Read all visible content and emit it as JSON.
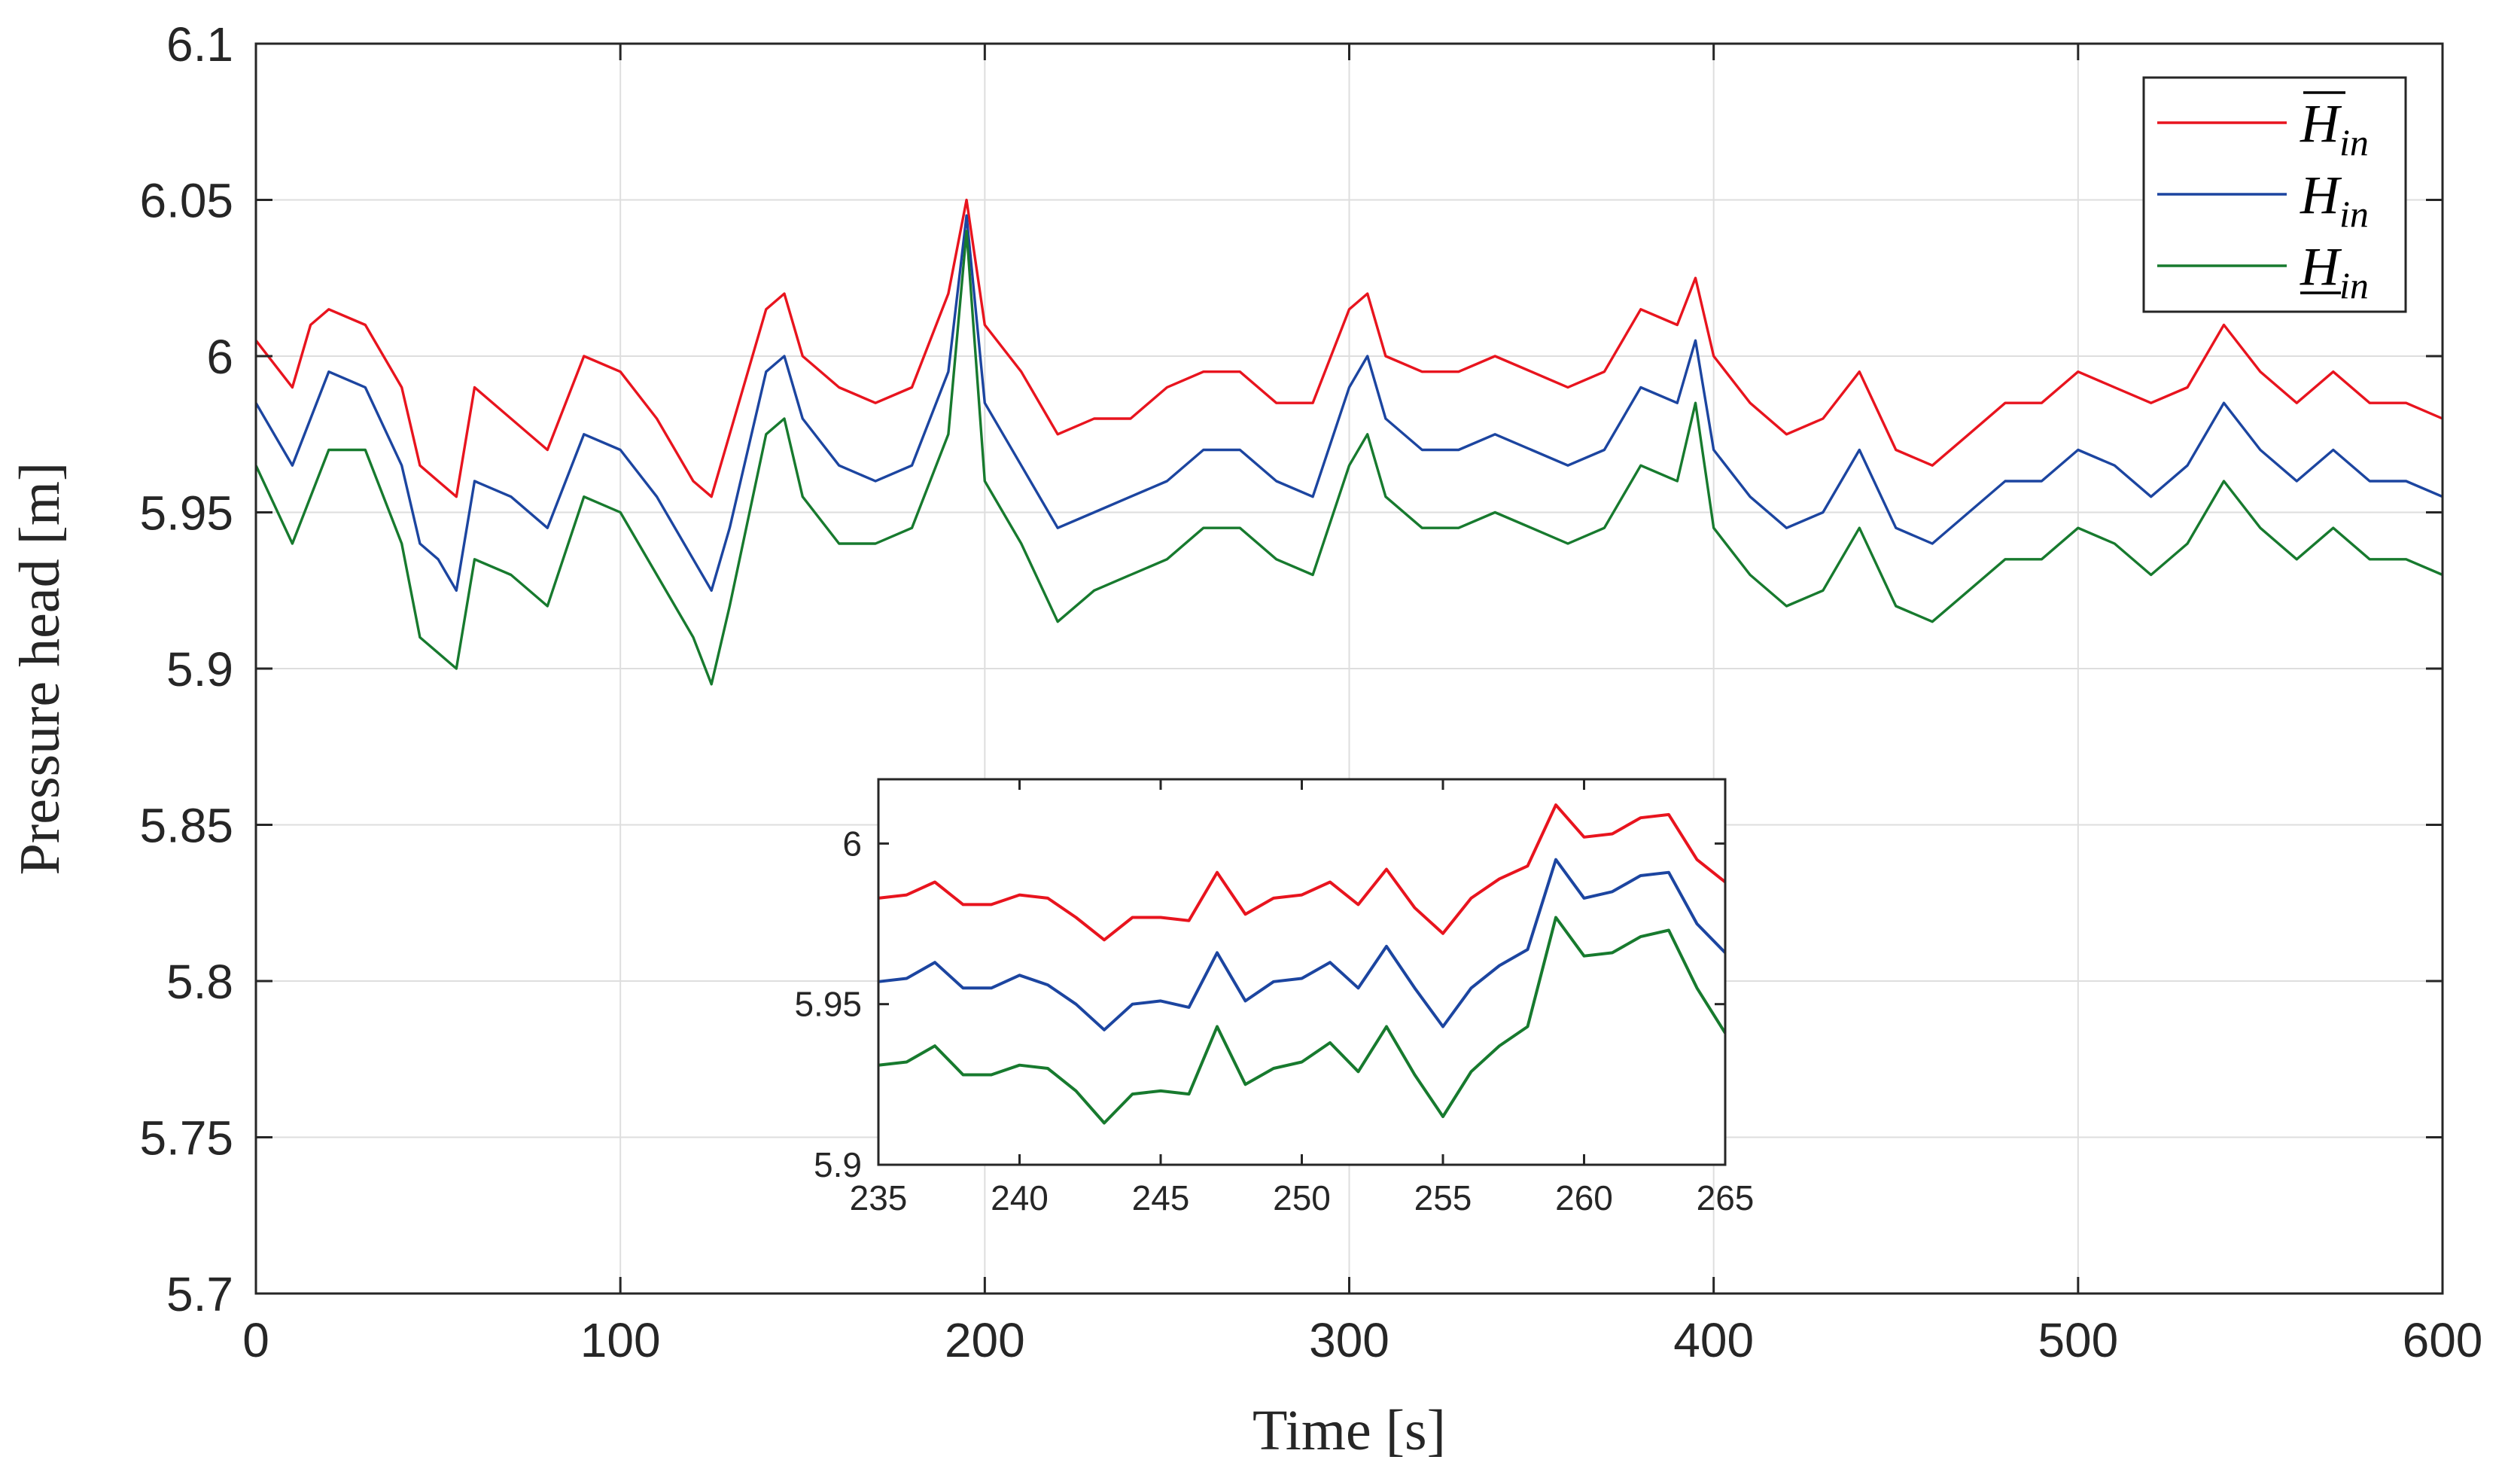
{
  "chart_data": [
    {
      "type": "line",
      "role": "main",
      "xlabel": "Time [s]",
      "ylabel": "Pressure head [m]",
      "xlim": [
        0,
        600
      ],
      "ylim": [
        5.7,
        6.1
      ],
      "xticks": [
        0,
        100,
        200,
        300,
        400,
        500,
        600
      ],
      "xtick_labels": [
        "0",
        "100",
        "200",
        "300",
        "400",
        "500",
        "600"
      ],
      "yticks": [
        5.7,
        5.75,
        5.8,
        5.85,
        5.9,
        5.95,
        6.0,
        6.05,
        6.1
      ],
      "ytick_labels": [
        "5.7",
        "5.75",
        "5.8",
        "5.85",
        "5.9",
        "5.95",
        "6",
        "6.05",
        "6.1"
      ],
      "grid": true,
      "legend_position": "top-right",
      "x": [
        0,
        10,
        15,
        20,
        30,
        40,
        45,
        50,
        55,
        60,
        70,
        80,
        90,
        100,
        110,
        120,
        125,
        130,
        140,
        145,
        150,
        160,
        170,
        180,
        190,
        195,
        200,
        210,
        220,
        230,
        240,
        250,
        260,
        270,
        280,
        290,
        300,
        305,
        310,
        320,
        330,
        340,
        350,
        360,
        370,
        380,
        390,
        395,
        400,
        410,
        420,
        430,
        440,
        450,
        460,
        470,
        480,
        490,
        500,
        510,
        520,
        530,
        540,
        550,
        560,
        570,
        580,
        590,
        600
      ],
      "series": [
        {
          "name": "upper",
          "label_main": "H",
          "label_sub": "in",
          "bar": "over",
          "color": "#e8141e",
          "values": [
            6.005,
            5.99,
            6.01,
            6.015,
            6.01,
            5.99,
            5.965,
            5.96,
            5.955,
            5.99,
            5.98,
            5.97,
            6.0,
            5.995,
            5.98,
            5.96,
            5.955,
            5.975,
            6.015,
            6.02,
            6.0,
            5.99,
            5.985,
            5.99,
            6.02,
            6.05,
            6.01,
            5.995,
            5.975,
            5.98,
            5.98,
            5.99,
            5.995,
            5.995,
            5.985,
            5.985,
            6.015,
            6.02,
            6.0,
            5.995,
            5.995,
            6.0,
            5.995,
            5.99,
            5.995,
            6.015,
            6.01,
            6.025,
            6.0,
            5.985,
            5.975,
            5.98,
            5.995,
            5.97,
            5.965,
            5.975,
            5.985,
            5.985,
            5.995,
            5.99,
            5.985,
            5.99,
            6.01,
            5.995,
            5.985,
            5.995,
            5.985,
            5.985,
            5.98
          ]
        },
        {
          "name": "nominal",
          "label_main": "H",
          "label_sub": "in",
          "bar": "none",
          "color": "#1c45a0",
          "values": [
            5.985,
            5.965,
            5.98,
            5.995,
            5.99,
            5.965,
            5.94,
            5.935,
            5.925,
            5.96,
            5.955,
            5.945,
            5.975,
            5.97,
            5.955,
            5.935,
            5.925,
            5.945,
            5.995,
            6.0,
            5.98,
            5.965,
            5.96,
            5.965,
            5.995,
            6.045,
            5.985,
            5.965,
            5.945,
            5.95,
            5.955,
            5.96,
            5.97,
            5.97,
            5.96,
            5.955,
            5.99,
            6.0,
            5.98,
            5.97,
            5.97,
            5.975,
            5.97,
            5.965,
            5.97,
            5.99,
            5.985,
            6.005,
            5.97,
            5.955,
            5.945,
            5.95,
            5.97,
            5.945,
            5.94,
            5.95,
            5.96,
            5.96,
            5.97,
            5.965,
            5.955,
            5.965,
            5.985,
            5.97,
            5.96,
            5.97,
            5.96,
            5.96,
            5.955
          ]
        },
        {
          "name": "lower",
          "label_main": "H",
          "label_sub": "in",
          "bar": "under",
          "color": "#177a2e",
          "values": [
            5.965,
            5.94,
            5.955,
            5.97,
            5.97,
            5.94,
            5.91,
            5.905,
            5.9,
            5.935,
            5.93,
            5.92,
            5.955,
            5.95,
            5.93,
            5.91,
            5.895,
            5.92,
            5.975,
            5.98,
            5.955,
            5.94,
            5.94,
            5.945,
            5.975,
            6.04,
            5.96,
            5.94,
            5.915,
            5.925,
            5.93,
            5.935,
            5.945,
            5.945,
            5.935,
            5.93,
            5.965,
            5.975,
            5.955,
            5.945,
            5.945,
            5.95,
            5.945,
            5.94,
            5.945,
            5.965,
            5.96,
            5.985,
            5.945,
            5.93,
            5.92,
            5.925,
            5.945,
            5.92,
            5.915,
            5.925,
            5.935,
            5.935,
            5.945,
            5.94,
            5.93,
            5.94,
            5.96,
            5.945,
            5.935,
            5.945,
            5.935,
            5.935,
            5.93
          ]
        }
      ]
    },
    {
      "type": "line",
      "role": "inset",
      "xlim": [
        235,
        265
      ],
      "ylim": [
        5.9,
        6.02
      ],
      "xticks": [
        235,
        240,
        245,
        250,
        255,
        260,
        265
      ],
      "xtick_labels": [
        "235",
        "240",
        "245",
        "250",
        "255",
        "260",
        "265"
      ],
      "yticks": [
        5.9,
        5.95,
        6.0
      ],
      "ytick_labels": [
        "5.9",
        "5.95",
        "6"
      ],
      "grid": false,
      "x": [
        235,
        236,
        237,
        238,
        239,
        240,
        241,
        242,
        243,
        244,
        245,
        246,
        247,
        248,
        249,
        250,
        251,
        252,
        253,
        254,
        255,
        256,
        257,
        258,
        259,
        260,
        261,
        262,
        263,
        264,
        265
      ],
      "series": [
        {
          "name": "upper",
          "color": "#e8141e",
          "values": [
            5.983,
            5.984,
            5.988,
            5.981,
            5.981,
            5.984,
            5.983,
            5.977,
            5.97,
            5.977,
            5.977,
            5.976,
            5.991,
            5.978,
            5.983,
            5.984,
            5.988,
            5.981,
            5.992,
            5.98,
            5.972,
            5.983,
            5.989,
            5.993,
            6.012,
            6.002,
            6.003,
            6.008,
            6.009,
            5.995,
            5.988
          ]
        },
        {
          "name": "nominal",
          "color": "#1c45a0",
          "values": [
            5.957,
            5.958,
            5.963,
            5.955,
            5.955,
            5.959,
            5.956,
            5.95,
            5.942,
            5.95,
            5.951,
            5.949,
            5.966,
            5.951,
            5.957,
            5.958,
            5.963,
            5.955,
            5.968,
            5.955,
            5.943,
            5.955,
            5.962,
            5.967,
            5.995,
            5.983,
            5.985,
            5.99,
            5.991,
            5.975,
            5.966
          ]
        },
        {
          "name": "lower",
          "color": "#177a2e",
          "values": [
            5.931,
            5.932,
            5.937,
            5.928,
            5.928,
            5.931,
            5.93,
            5.923,
            5.913,
            5.922,
            5.923,
            5.922,
            5.943,
            5.925,
            5.93,
            5.932,
            5.938,
            5.929,
            5.943,
            5.928,
            5.915,
            5.929,
            5.937,
            5.943,
            5.977,
            5.965,
            5.966,
            5.971,
            5.973,
            5.955,
            5.941
          ]
        }
      ]
    }
  ]
}
